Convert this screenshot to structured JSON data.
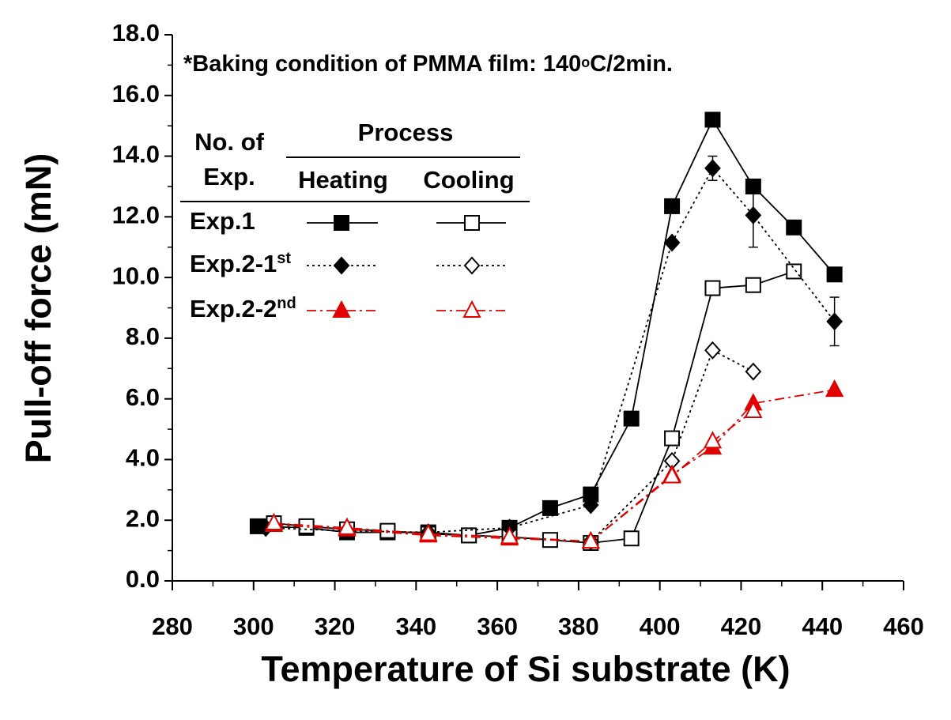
{
  "chart_data": {
    "type": "line",
    "annotation": [
      "*Baking condition of PMMA film: 140",
      "o",
      "C/2min."
    ],
    "x_label": "Temperature of Si substrate (K)",
    "y_label": "Pull-off force (mN)",
    "xlim": [
      280,
      460
    ],
    "xticks": [
      280,
      300,
      320,
      340,
      360,
      380,
      400,
      420,
      440,
      460
    ],
    "ylim": [
      0,
      18
    ],
    "yticks": [
      {
        "value": 0,
        "label": "0.0"
      },
      {
        "value": 2,
        "label": "2.0"
      },
      {
        "value": 4,
        "label": "4.0"
      },
      {
        "value": 6,
        "label": "6.0"
      },
      {
        "value": 8,
        "label": "8.0"
      },
      {
        "value": 10,
        "label": "10.0"
      },
      {
        "value": 12,
        "label": "12.0"
      },
      {
        "value": 14,
        "label": "14.0"
      },
      {
        "value": 16,
        "label": "16.0"
      },
      {
        "value": 18,
        "label": "18.0"
      }
    ],
    "legend": {
      "header": [
        "No. of",
        "Exp."
      ],
      "process": "Process",
      "heating": "Heating",
      "cooling": "Cooling"
    },
    "series": [
      {
        "name": "Exp.1",
        "name_sup": "",
        "color": "#000000",
        "marker": "square",
        "dash": "solid",
        "heating": {
          "x": [
            301,
            313,
            323,
            333,
            343,
            353,
            363,
            373,
            383,
            393,
            403,
            413,
            423,
            433,
            443
          ],
          "values": [
            1.8,
            1.75,
            1.6,
            1.6,
            1.6,
            1.5,
            1.75,
            2.4,
            2.85,
            5.35,
            12.35,
            15.2,
            13.0,
            11.65,
            10.1
          ]
        },
        "cooling": {
          "x": [
            305,
            313,
            323,
            333,
            343,
            353,
            363,
            373,
            383,
            393,
            403,
            413,
            423,
            433
          ],
          "values": [
            1.9,
            1.8,
            1.7,
            1.65,
            1.55,
            1.5,
            1.45,
            1.35,
            1.25,
            1.4,
            4.7,
            9.65,
            9.75,
            10.2
          ]
        }
      },
      {
        "name": "Exp.2-1",
        "name_sup": "st",
        "color": "#000000",
        "marker": "diamond",
        "dash": "dotted",
        "heating": {
          "x": [
            303,
            323,
            343,
            363,
            383,
            403,
            413,
            423,
            443
          ],
          "values": [
            1.75,
            1.65,
            1.6,
            1.75,
            2.5,
            11.15,
            13.6,
            12.05,
            8.55
          ],
          "errors": [
            null,
            null,
            null,
            null,
            null,
            null,
            0.4,
            1.05,
            0.8
          ]
        },
        "cooling": {
          "x": [
            383,
            403,
            413,
            423
          ],
          "values": [
            1.3,
            3.95,
            7.6,
            6.9
          ]
        }
      },
      {
        "name": "Exp.2-2",
        "name_sup": "nd",
        "color": "#e00000",
        "marker": "triangle",
        "dash": "dashdot",
        "heating": {
          "x": [
            305,
            323,
            343,
            363,
            383,
            403,
            413,
            423,
            443
          ],
          "values": [
            1.85,
            1.7,
            1.5,
            1.4,
            1.3,
            3.5,
            4.4,
            5.85,
            6.3
          ]
        },
        "cooling": {
          "x": [
            305,
            323,
            343,
            363,
            383,
            403,
            413,
            423
          ],
          "values": [
            1.9,
            1.75,
            1.55,
            1.45,
            1.3,
            3.45,
            4.6,
            5.6
          ]
        }
      }
    ]
  }
}
